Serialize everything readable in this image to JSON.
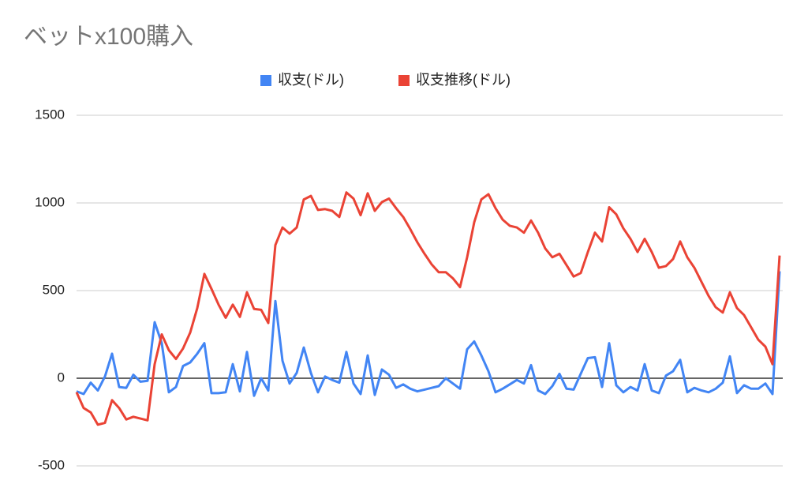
{
  "chart_data": {
    "type": "line",
    "title": "ベットx100購入",
    "ylim": [
      -500,
      1500
    ],
    "yticks": [
      -500,
      0,
      500,
      1000,
      1500
    ],
    "grid": true,
    "legend": "top",
    "series": [
      {
        "name": "収支(ドル)",
        "color": "#4285f4",
        "values": [
          -75,
          -90,
          -25,
          -70,
          10,
          140,
          -50,
          -55,
          20,
          -20,
          -15,
          320,
          200,
          -80,
          -50,
          70,
          90,
          140,
          200,
          -85,
          -85,
          -80,
          80,
          -75,
          150,
          -100,
          0,
          -70,
          440,
          100,
          -30,
          30,
          175,
          30,
          -80,
          10,
          -10,
          -25,
          150,
          -30,
          -90,
          130,
          -95,
          50,
          20,
          -55,
          -35,
          -60,
          -75,
          -65,
          -55,
          -45,
          0,
          -30,
          -60,
          165,
          210,
          130,
          40,
          -80,
          -60,
          -35,
          -10,
          -30,
          75,
          -70,
          -90,
          -45,
          25,
          -60,
          -65,
          25,
          115,
          120,
          -50,
          200,
          -40,
          -80,
          -50,
          -70,
          80,
          -70,
          -85,
          15,
          40,
          105,
          -80,
          -55,
          -70,
          -80,
          -60,
          -25,
          125,
          -85,
          -40,
          -60,
          -60,
          -30,
          -90,
          610
        ]
      },
      {
        "name": "収支推移(ドル)",
        "color": "#ea4335",
        "values": [
          -80,
          -170,
          -195,
          -265,
          -255,
          -125,
          -170,
          -235,
          -220,
          -230,
          -240,
          80,
          250,
          160,
          110,
          170,
          260,
          400,
          595,
          510,
          420,
          345,
          420,
          350,
          490,
          395,
          390,
          315,
          760,
          860,
          825,
          860,
          1020,
          1040,
          960,
          965,
          955,
          920,
          1060,
          1025,
          930,
          1055,
          955,
          1005,
          1025,
          970,
          920,
          850,
          775,
          710,
          650,
          605,
          605,
          570,
          520,
          690,
          890,
          1020,
          1050,
          970,
          905,
          870,
          860,
          830,
          900,
          830,
          740,
          690,
          710,
          645,
          580,
          600,
          720,
          830,
          780,
          975,
          935,
          855,
          795,
          720,
          795,
          720,
          630,
          640,
          680,
          780,
          690,
          630,
          550,
          470,
          405,
          375,
          490,
          400,
          360,
          290,
          220,
          180,
          80,
          700
        ]
      }
    ]
  }
}
